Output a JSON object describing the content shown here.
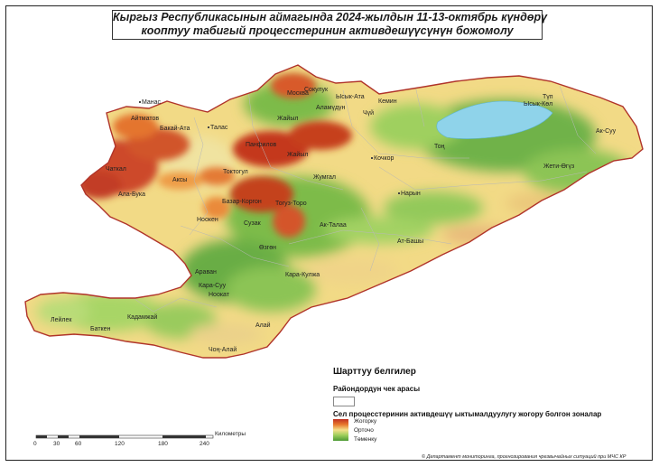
{
  "title": {
    "line1": "Кыргыз Республикасынын аймагында 2024-жылдын 11-13-октябрь күндөрү",
    "line2": "кооптуу табигый процесстеринин активдешүүсүнүн божомолу"
  },
  "places": [
    {
      "name": "Талас"
    },
    {
      "name": "Манас"
    },
    {
      "name": "Айтматов"
    },
    {
      "name": "Бакай-Ата"
    },
    {
      "name": "Москва"
    },
    {
      "name": "Сокулук"
    },
    {
      "name": "Ысык-Ата"
    },
    {
      "name": "Аламүдүн"
    },
    {
      "name": "Жайыл"
    },
    {
      "name": "Кемин"
    },
    {
      "name": "Чүй"
    },
    {
      "name": "Түп"
    },
    {
      "name": "Ысык-Көл"
    },
    {
      "name": "Тоң"
    },
    {
      "name": "Ак-Суу"
    },
    {
      "name": "Жети-Өгүз"
    },
    {
      "name": "Кочкор"
    },
    {
      "name": "Жумгал"
    },
    {
      "name": "Нарын"
    },
    {
      "name": "Ак-Талаа"
    },
    {
      "name": "Ат-Башы"
    },
    {
      "name": "Панфилов"
    },
    {
      "name": "Жайыл"
    },
    {
      "name": "Токтогул"
    },
    {
      "name": "Чаткал"
    },
    {
      "name": "Аксы"
    },
    {
      "name": "Ала-Бука"
    },
    {
      "name": "Базар-Коргон"
    },
    {
      "name": "Тогуз-Торо"
    },
    {
      "name": "Ноокен"
    },
    {
      "name": "Сузак"
    },
    {
      "name": "Өзгөн"
    },
    {
      "name": "Араван"
    },
    {
      "name": "Кара-Суу"
    },
    {
      "name": "Ноокат"
    },
    {
      "name": "Кара-Кулжа"
    },
    {
      "name": "Лейлек"
    },
    {
      "name": "Кадамжай"
    },
    {
      "name": "Баткен"
    },
    {
      "name": "Алай"
    },
    {
      "name": "Чоң-Алай"
    }
  ],
  "legend": {
    "heading": "Шарттуу белгилер",
    "boundary_label": "Райондордун чек арасы",
    "ramp_label": "Сел процесстеринин активдешүү ыктымалдуулугу жогору болгон зоналар",
    "high": "Жогорку",
    "medium": "Орточо",
    "low": "Төменку"
  },
  "scale": {
    "ticks": [
      "0",
      "30",
      "60",
      "120",
      "180",
      "240"
    ],
    "unit": "Километры"
  },
  "credit": "© Департамент мониторинга, прогнозирования чрезвычайных ситуаций при МЧС КР",
  "colors": {
    "high": "#c02f20",
    "high_mid": "#e8782c",
    "medium": "#f4e08a",
    "low_mid": "#9ccd5a",
    "low": "#4d9a35",
    "lake": "#8fd3ea",
    "boundary": "#b0342a"
  }
}
